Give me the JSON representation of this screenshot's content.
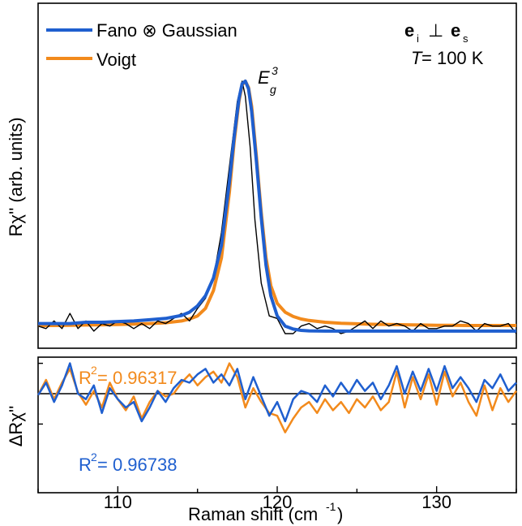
{
  "colors": {
    "fano": "#1f5fcf",
    "voigt": "#f28a1c",
    "data": "#000000",
    "axis": "#000000"
  },
  "chart_data": [
    {
      "type": "line",
      "panel": "spectrum",
      "xlim": [
        105,
        135
      ],
      "ylim": [
        -0.03,
        1.05
      ],
      "ylabel": "Rχ'' (arb. units)",
      "xlabel": "",
      "yticks_labeled": false,
      "legend": {
        "placement": "top-left",
        "entries": [
          {
            "name": "Fano ⊗ Gaussian",
            "color": "#1f5fcf"
          },
          {
            "name": "Voigt",
            "color": "#f28a1c"
          }
        ]
      },
      "annotations": {
        "peak_label": {
          "base": "E",
          "sub": "g",
          "sup": "3"
        },
        "polarization": {
          "e1": "e",
          "e1_sub": "i",
          "perp": "⊥",
          "e2": "e",
          "e2_sub": "s"
        },
        "temperature": {
          "var": "T",
          "rest": " = 100 K"
        }
      },
      "series": [
        {
          "name": "data",
          "role": "measured",
          "x": [
            105.0,
            105.5,
            106.0,
            106.5,
            107.0,
            107.5,
            108.0,
            108.5,
            109.0,
            109.5,
            110.0,
            110.5,
            111.0,
            111.5,
            112.0,
            112.5,
            113.0,
            113.5,
            114.0,
            114.5,
            115.0,
            115.5,
            116.0,
            116.5,
            117.0,
            117.5,
            117.8,
            118.0,
            118.3,
            118.6,
            119.0,
            119.5,
            120.0,
            120.5,
            121.0,
            121.5,
            122.0,
            122.5,
            123.0,
            123.5,
            124.0,
            124.5,
            125.0,
            125.5,
            126.0,
            126.5,
            127.0,
            127.5,
            128.0,
            128.5,
            129.0,
            129.5,
            130.0,
            130.5,
            131.0,
            131.5,
            132.0,
            132.5,
            133.0,
            133.5,
            134.0,
            134.5,
            135.0
          ],
          "y": [
            0.03,
            0.02,
            0.05,
            0.02,
            0.08,
            0.02,
            0.05,
            0.01,
            0.04,
            0.03,
            0.05,
            0.04,
            0.02,
            0.04,
            0.02,
            0.05,
            0.04,
            0.06,
            0.08,
            0.05,
            0.1,
            0.14,
            0.22,
            0.4,
            0.66,
            0.92,
            1.0,
            0.94,
            0.74,
            0.45,
            0.2,
            0.07,
            0.06,
            0.0,
            0.0,
            0.03,
            0.04,
            0.02,
            0.03,
            0.02,
            0.0,
            0.01,
            0.03,
            0.05,
            0.02,
            0.05,
            0.03,
            0.04,
            0.03,
            0.01,
            0.04,
            0.02,
            0.02,
            0.03,
            0.03,
            0.05,
            0.04,
            0.01,
            0.04,
            0.03,
            0.03,
            0.04,
            0.0
          ]
        },
        {
          "name": "Fano ⊗ Gaussian",
          "role": "fit",
          "color": "#1f5fcf",
          "x": [
            105,
            106,
            107,
            108,
            109,
            110,
            111,
            112,
            113,
            114,
            114.5,
            115,
            115.5,
            116,
            116.5,
            117,
            117.3,
            117.6,
            117.8,
            118,
            118.2,
            118.4,
            118.7,
            119,
            119.3,
            119.6,
            120,
            120.5,
            121,
            121.5,
            122,
            123,
            124,
            125,
            126,
            127,
            128,
            129,
            130,
            131,
            132,
            133,
            134,
            135
          ],
          "y": [
            0.04,
            0.04,
            0.04,
            0.045,
            0.045,
            0.048,
            0.05,
            0.055,
            0.06,
            0.072,
            0.085,
            0.11,
            0.15,
            0.22,
            0.35,
            0.6,
            0.78,
            0.93,
            0.99,
            1.0,
            0.97,
            0.88,
            0.68,
            0.46,
            0.27,
            0.15,
            0.07,
            0.03,
            0.018,
            0.013,
            0.011,
            0.01,
            0.01,
            0.01,
            0.01,
            0.01,
            0.01,
            0.01,
            0.01,
            0.01,
            0.01,
            0.01,
            0.01,
            0.01
          ]
        },
        {
          "name": "Voigt",
          "role": "fit",
          "color": "#f28a1c",
          "x": [
            105,
            106,
            107,
            108,
            109,
            110,
            111,
            112,
            113,
            114,
            114.5,
            115,
            115.5,
            116,
            116.5,
            117,
            117.3,
            117.6,
            117.8,
            118,
            118.2,
            118.4,
            118.7,
            119,
            119.3,
            119.6,
            120,
            120.5,
            121,
            121.5,
            122,
            123,
            124,
            125,
            126,
            127,
            128,
            129,
            130,
            131,
            132,
            133,
            134,
            135
          ],
          "y": [
            0.032,
            0.032,
            0.033,
            0.034,
            0.035,
            0.036,
            0.038,
            0.04,
            0.043,
            0.05,
            0.058,
            0.07,
            0.1,
            0.17,
            0.3,
            0.56,
            0.76,
            0.92,
            0.985,
            1.0,
            0.975,
            0.9,
            0.7,
            0.48,
            0.3,
            0.19,
            0.12,
            0.085,
            0.068,
            0.058,
            0.052,
            0.045,
            0.041,
            0.039,
            0.037,
            0.036,
            0.035,
            0.034,
            0.033,
            0.033,
            0.032,
            0.032,
            0.032,
            0.032
          ]
        }
      ]
    },
    {
      "type": "line",
      "panel": "residuals",
      "xlim": [
        105,
        135
      ],
      "ylim": [
        -1.5,
        1.5
      ],
      "xlabel": "Raman shift (cm⁻¹)",
      "xlabel_parts": {
        "main": "Raman shift (cm",
        "sup": "-1",
        "close": ")"
      },
      "ylabel": "ΔRχ''",
      "xticks": [
        110,
        120,
        130
      ],
      "zero_line": true,
      "annotations": {
        "r2_voigt": {
          "pre": "R",
          "sup": "2",
          "post": " = 0.96317",
          "color": "#f28a1c"
        },
        "r2_fano": {
          "pre": "R",
          "sup": "2",
          "post": " = 0.96738",
          "color": "#1f5fcf"
        }
      },
      "series": [
        {
          "name": "Voigt",
          "color": "#f28a1c",
          "x": [
            105,
            105.5,
            106,
            106.5,
            107,
            107.5,
            108,
            108.5,
            109,
            109.5,
            110,
            110.5,
            111,
            111.5,
            112,
            112.5,
            113,
            113.5,
            114,
            114.5,
            115,
            115.5,
            116,
            116.5,
            117,
            117.5,
            118,
            118.5,
            119,
            119.5,
            120,
            120.5,
            121,
            121.5,
            122,
            122.5,
            123,
            123.5,
            124,
            124.5,
            125,
            125.5,
            126,
            126.5,
            127,
            127.5,
            128,
            128.5,
            129,
            129.5,
            130,
            130.5,
            131,
            131.5,
            132,
            132.5,
            133,
            133.5,
            134,
            134.5,
            135
          ],
          "y": [
            -0.05,
            0.5,
            -0.2,
            0.4,
            0.9,
            0.05,
            -0.4,
            0.1,
            -0.5,
            0.4,
            -0.2,
            -0.6,
            -0.1,
            -0.9,
            -0.3,
            0.1,
            -0.1,
            0.0,
            0.4,
            0.7,
            0.3,
            0.6,
            0.8,
            0.4,
            1.1,
            0.6,
            -0.5,
            0.2,
            -0.3,
            -0.7,
            -0.8,
            -1.4,
            -0.9,
            -0.5,
            -0.3,
            -0.7,
            -0.2,
            -0.6,
            -0.3,
            -0.7,
            -0.2,
            -0.5,
            -0.1,
            -0.6,
            -0.3,
            0.8,
            -0.5,
            0.6,
            -0.2,
            0.7,
            -0.4,
            0.8,
            -0.1,
            0.4,
            -0.3,
            -0.8,
            0.3,
            -0.6,
            0.2,
            -0.3,
            0.1
          ]
        },
        {
          "name": "Fano ⊗ Gaussian",
          "color": "#1f5fcf",
          "x": [
            105,
            105.5,
            106,
            106.5,
            107,
            107.5,
            108,
            108.5,
            109,
            109.5,
            110,
            110.5,
            111,
            111.5,
            112,
            112.5,
            113,
            113.5,
            114,
            114.5,
            115,
            115.5,
            116,
            116.5,
            117,
            117.5,
            118,
            118.5,
            119,
            119.5,
            120,
            120.5,
            121,
            121.5,
            122,
            122.5,
            123,
            123.5,
            124,
            124.5,
            125,
            125.5,
            126,
            126.5,
            127,
            127.5,
            128,
            128.5,
            129,
            129.5,
            130,
            130.5,
            131,
            131.5,
            132,
            132.5,
            133,
            133.5,
            134,
            134.5,
            135
          ],
          "y": [
            -0.05,
            0.4,
            -0.3,
            0.3,
            1.1,
            0.0,
            -0.2,
            0.3,
            -0.7,
            0.2,
            -0.2,
            -0.5,
            -0.3,
            -1.0,
            -0.5,
            0.1,
            -0.3,
            0.2,
            0.5,
            0.4,
            0.7,
            0.9,
            0.4,
            0.7,
            0.3,
            0.9,
            -0.2,
            0.6,
            -0.1,
            -0.8,
            -0.3,
            -1.0,
            -0.2,
            0.1,
            0.0,
            -0.3,
            0.3,
            -0.1,
            0.4,
            0.0,
            0.5,
            0.1,
            0.4,
            -0.2,
            0.3,
            1.0,
            0.0,
            0.8,
            0.1,
            0.9,
            0.1,
            1.0,
            0.2,
            0.6,
            0.2,
            -0.3,
            0.5,
            0.2,
            0.7,
            0.1,
            0.4
          ]
        }
      ]
    }
  ]
}
